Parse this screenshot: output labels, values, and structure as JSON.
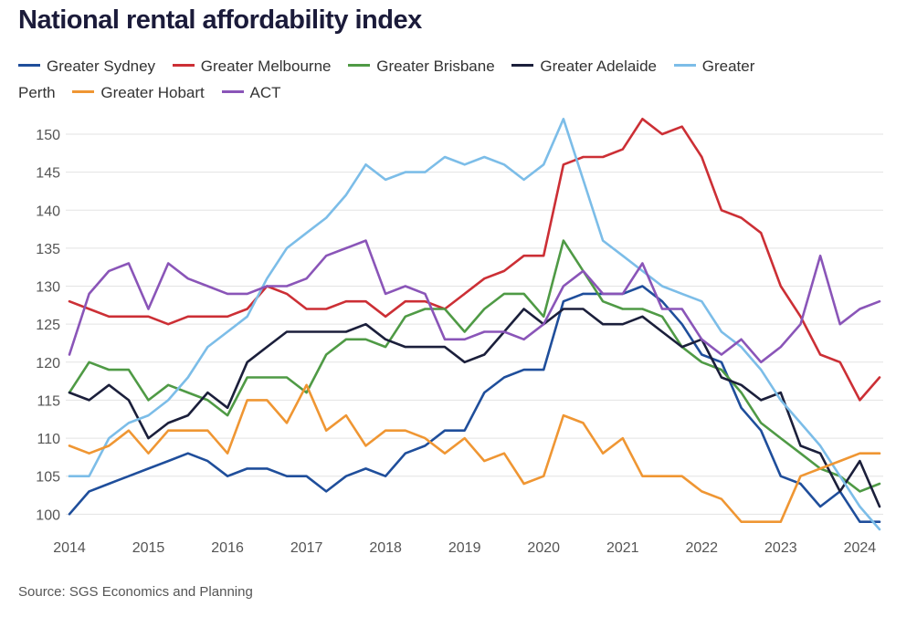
{
  "chart_data": {
    "type": "line",
    "title": "National rental affordability index",
    "source": "Source: SGS Economics and Planning",
    "xlabel": "",
    "ylabel": "",
    "x_start": 2014,
    "quarters_per_year": 4,
    "xlim": [
      2014,
      2024.25
    ],
    "ylim": [
      98,
      153
    ],
    "yticks": [
      100,
      105,
      110,
      115,
      120,
      125,
      130,
      135,
      140,
      145,
      150
    ],
    "xticks": [
      2014,
      2015,
      2016,
      2017,
      2018,
      2019,
      2020,
      2021,
      2022,
      2023,
      2024
    ],
    "grid": true,
    "legend_position": "top",
    "series": [
      {
        "name": "Greater Sydney",
        "legend_label": "Greater Sydney",
        "color": "#1f4e9b",
        "values": [
          100,
          103,
          104,
          105,
          106,
          107,
          108,
          107,
          105,
          106,
          106,
          105,
          105,
          103,
          105,
          106,
          105,
          108,
          109,
          111,
          111,
          116,
          118,
          119,
          119,
          128,
          129,
          129,
          129,
          130,
          128,
          125,
          121,
          120,
          114,
          111,
          105,
          104,
          101,
          103,
          99,
          99
        ]
      },
      {
        "name": "Greater Melbourne",
        "legend_label": "Greater Melbourne",
        "color": "#cc2f35",
        "values": [
          128,
          127,
          126,
          126,
          126,
          125,
          126,
          126,
          126,
          127,
          130,
          129,
          127,
          127,
          128,
          128,
          126,
          128,
          128,
          127,
          129,
          131,
          132,
          134,
          134,
          146,
          147,
          147,
          148,
          152,
          150,
          151,
          147,
          140,
          139,
          137,
          130,
          126,
          121,
          120,
          115,
          118
        ]
      },
      {
        "name": "Greater Brisbane",
        "legend_label": "Greater Brisbane",
        "color": "#4f9a45",
        "values": [
          116,
          120,
          119,
          119,
          115,
          117,
          116,
          115,
          113,
          118,
          118,
          118,
          116,
          121,
          123,
          123,
          122,
          126,
          127,
          127,
          124,
          127,
          129,
          129,
          126,
          136,
          132,
          128,
          127,
          127,
          126,
          122,
          120,
          119,
          116,
          112,
          110,
          108,
          106,
          105,
          103,
          104
        ]
      },
      {
        "name": "Greater Adelaide",
        "legend_label": "Greater Adelaide",
        "color": "#1b1f3b",
        "values": [
          116,
          115,
          117,
          115,
          110,
          112,
          113,
          116,
          114,
          120,
          122,
          124,
          124,
          124,
          124,
          125,
          123,
          122,
          122,
          122,
          120,
          121,
          124,
          127,
          125,
          127,
          127,
          125,
          125,
          126,
          124,
          122,
          123,
          118,
          117,
          115,
          116,
          109,
          108,
          103,
          107,
          101
        ]
      },
      {
        "name": "Greater Perth",
        "legend_label": "Greater",
        "legend_label_wrap": "Perth",
        "color": "#7cbde8",
        "values": [
          105,
          105,
          110,
          112,
          113,
          115,
          118,
          122,
          124,
          126,
          131,
          135,
          137,
          139,
          142,
          146,
          144,
          145,
          145,
          147,
          146,
          147,
          146,
          144,
          146,
          152,
          144,
          136,
          134,
          132,
          130,
          129,
          128,
          124,
          122,
          119,
          115,
          112,
          109,
          105,
          101,
          98
        ]
      },
      {
        "name": "Greater Hobart",
        "legend_label": "Greater Hobart",
        "color": "#ef9633",
        "values": [
          109,
          108,
          109,
          111,
          108,
          111,
          111,
          111,
          108,
          115,
          115,
          112,
          117,
          111,
          113,
          109,
          111,
          111,
          110,
          108,
          110,
          107,
          108,
          104,
          105,
          113,
          112,
          108,
          110,
          105,
          105,
          105,
          103,
          102,
          99,
          99,
          99,
          105,
          106,
          107,
          108,
          108
        ]
      },
      {
        "name": "ACT",
        "legend_label": "ACT",
        "color": "#8a55b8",
        "values": [
          121,
          129,
          132,
          133,
          127,
          133,
          131,
          130,
          129,
          129,
          130,
          130,
          131,
          134,
          135,
          136,
          129,
          130,
          129,
          123,
          123,
          124,
          124,
          123,
          125,
          130,
          132,
          129,
          129,
          133,
          127,
          127,
          123,
          121,
          123,
          120,
          122,
          125,
          134,
          125,
          127,
          128
        ]
      }
    ]
  }
}
